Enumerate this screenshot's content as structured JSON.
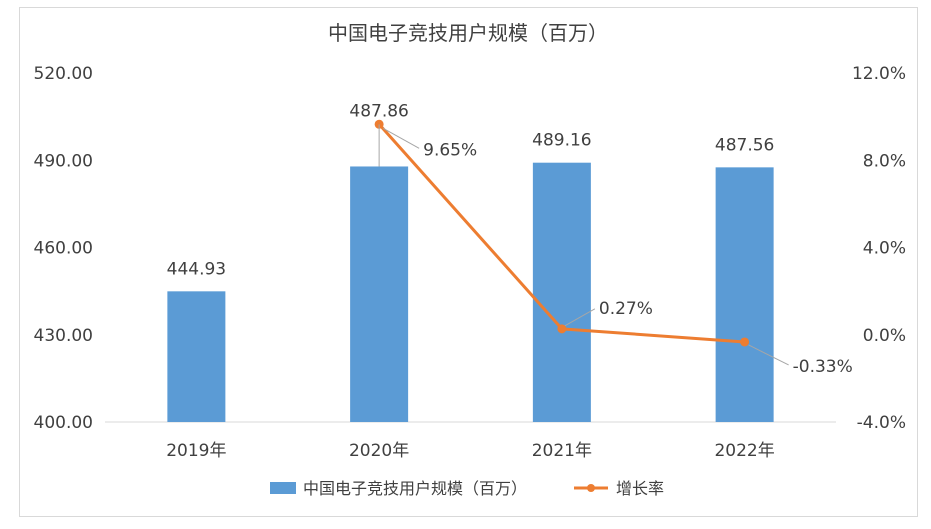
{
  "chart_data": {
    "type": "bar",
    "title": "中国电子竞技用户规模（百万）",
    "categories": [
      "2019年",
      "2020年",
      "2021年",
      "2022年"
    ],
    "series": [
      {
        "name": "中国电子竞技用户规模（百万）",
        "kind": "bar",
        "axis": "left",
        "values": [
          444.93,
          487.86,
          489.16,
          487.56
        ],
        "labels": [
          "444.93",
          "487.86",
          "489.16",
          "487.56"
        ]
      },
      {
        "name": "增长率",
        "kind": "line",
        "axis": "right",
        "values": [
          null,
          9.65,
          0.27,
          -0.33
        ],
        "labels": [
          null,
          "9.65%",
          "0.27%",
          "-0.33%"
        ]
      }
    ],
    "y_left": {
      "lim": [
        400,
        520
      ],
      "ticks": [
        400,
        430,
        460,
        490,
        520
      ],
      "tick_labels": [
        "400.00",
        "430.00",
        "460.00",
        "490.00",
        "520.00"
      ]
    },
    "y_right": {
      "lim": [
        -4,
        12
      ],
      "ticks": [
        -4,
        0,
        4,
        8,
        12
      ],
      "tick_labels": [
        "-4.0%",
        "0.0%",
        "4.0%",
        "8.0%",
        "12.0%"
      ]
    },
    "grid": false,
    "legend_position": "bottom",
    "colors": {
      "bar": "#5b9bd5",
      "line": "#ed7d31",
      "axis": "#d9d9d9",
      "text": "#404040",
      "leader": "#a6a6a6"
    }
  }
}
